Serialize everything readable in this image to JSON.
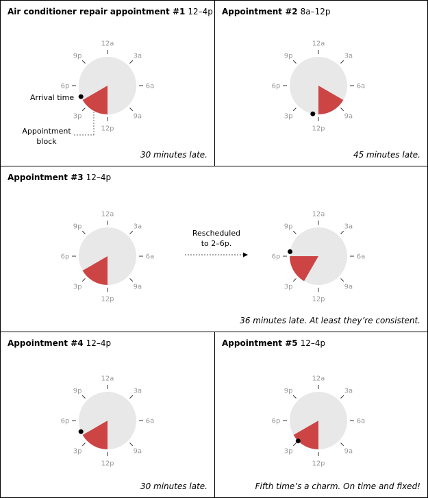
{
  "hour_labels": [
    "12a",
    "3a",
    "6a",
    "9a",
    "12p",
    "3p",
    "6p",
    "9p"
  ],
  "colors": {
    "face": "#e8e8e8",
    "block": "#cc4444",
    "tick": "#333333",
    "label": "#999999",
    "dot": "#000000",
    "border": "#000000"
  },
  "panels": [
    {
      "title": "Air conditioner repair appointment #1",
      "times": "12–4p",
      "caption": "30 minutes late.",
      "clocks": [
        {
          "block_start_hour": 12,
          "block_end_hour": 16,
          "arrival_hour": 16.5
        }
      ]
    },
    {
      "title": "Appointment #2",
      "times": "8a–12p",
      "caption": "45 minutes late.",
      "clocks": [
        {
          "block_start_hour": 8,
          "block_end_hour": 12,
          "arrival_hour": 12.75
        }
      ]
    },
    {
      "title": "Appointment #3",
      "times": "12–4p",
      "caption": "36 minutes late. At least they’re consistent.",
      "clocks": [
        {
          "block_start_hour": 12,
          "block_end_hour": 16,
          "arrival_hour": null
        },
        {
          "block_start_hour": 14,
          "block_end_hour": 18,
          "arrival_hour": 18.6
        }
      ]
    },
    {
      "title": "Appointment #4",
      "times": "12–4p",
      "caption": "30 minutes late.",
      "clocks": [
        {
          "block_start_hour": 12,
          "block_end_hour": 16,
          "arrival_hour": 16.5
        }
      ]
    },
    {
      "title": "Appointment #5",
      "times": "12–4p",
      "caption": "Fifth time’s a charm. On time and fixed!",
      "clocks": [
        {
          "block_start_hour": 12,
          "block_end_hour": 16,
          "arrival_hour": 15
        }
      ]
    }
  ],
  "annotations": {
    "arrival_time": "Arrival time",
    "appointment_block": "Appointment block",
    "rescheduled": "Rescheduled to 2–6p."
  }
}
